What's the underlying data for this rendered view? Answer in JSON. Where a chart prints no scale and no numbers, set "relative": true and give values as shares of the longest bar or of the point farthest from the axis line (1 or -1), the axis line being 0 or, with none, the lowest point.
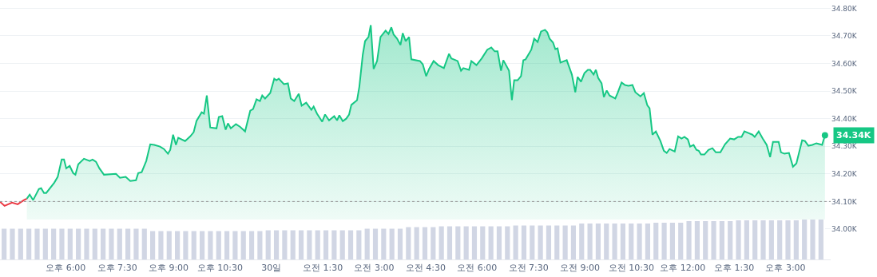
{
  "chart_data": [
    {
      "type": "area",
      "xlim": [
        "--10-29T16:05",
        "--10-30T16:19"
      ],
      "ylim": [
        33.89,
        34.83
      ],
      "xticks": [
        {
          "value": "--10-29T18:00",
          "label": "오후 6:00"
        },
        {
          "value": "--10-29T19:30",
          "label": "오후 7:30"
        },
        {
          "value": "--10-29T21:00",
          "label": "오후 9:00"
        },
        {
          "value": "--10-29T22:30",
          "label": "오후 10:30"
        },
        {
          "value": "--10-30T00:00",
          "label": "30일"
        },
        {
          "value": "--10-30T01:30",
          "label": "오전 1:30"
        },
        {
          "value": "--10-30T03:00",
          "label": "오전 3:00"
        },
        {
          "value": "--10-30T04:30",
          "label": "오전 4:30"
        },
        {
          "value": "--10-30T06:00",
          "label": "오전 6:00"
        },
        {
          "value": "--10-30T07:30",
          "label": "오전 7:30"
        },
        {
          "value": "--10-30T09:00",
          "label": "오전 9:00"
        },
        {
          "value": "--10-30T10:30",
          "label": "오전 10:30"
        },
        {
          "value": "--10-30T12:00",
          "label": "오후 12:00"
        },
        {
          "value": "--10-30T13:30",
          "label": "오후 1:30"
        },
        {
          "value": "--10-30T15:00",
          "label": "오후 3:00"
        }
      ],
      "yticks": [
        {
          "value": 34.0,
          "label": "34.00K"
        },
        {
          "value": 34.1,
          "label": "34.10K"
        },
        {
          "value": 34.2,
          "label": "34.20K"
        },
        {
          "value": 34.3,
          "label": "34.30K"
        },
        {
          "value": 34.4,
          "label": "34.40K"
        },
        {
          "value": 34.5,
          "label": "34.50K"
        },
        {
          "value": 34.6,
          "label": "34.60K"
        },
        {
          "value": 34.7,
          "label": "34.70K"
        },
        {
          "value": 34.8,
          "label": "34.80K"
        }
      ],
      "grid": "y",
      "ref_lines": [
        {
          "axis": "y",
          "value": 34.1,
          "color": "#999999",
          "line_style": "dotted"
        }
      ],
      "annotations": [
        "34.34K"
      ],
      "series": [
        {
          "type": "line",
          "color": "#ea3943",
          "x": [
            "--10-29T16:05",
            "--10-29T16:13",
            "--10-29T16:26",
            "--10-29T16:36",
            "--10-29T16:47",
            "--10-29T16:52"
          ],
          "values": [
            34.099,
            34.084,
            34.096,
            34.09,
            34.105,
            34.11
          ]
        },
        {
          "type": "area",
          "color": "#16c784",
          "x": [
            "--10-29T16:52",
            "--10-29T16:57",
            "--10-29T17:03",
            "--10-29T17:13",
            "--10-29T17:17",
            "--10-29T17:22",
            "--10-29T17:26",
            "--10-29T17:40",
            "--10-29T17:46",
            "--10-29T17:53",
            "--10-29T17:57",
            "--10-29T18:01",
            "--10-29T18:07",
            "--10-29T18:13",
            "--10-29T18:17",
            "--10-29T18:22",
            "--10-29T18:32",
            "--10-29T18:42",
            "--10-29T18:47",
            "--10-29T18:53",
            "--10-29T18:59",
            "--10-29T19:07",
            "--10-29T19:28",
            "--10-29T19:35",
            "--10-29T19:45",
            "--10-29T19:53",
            "--10-29T20:03",
            "--10-29T20:07",
            "--10-29T20:13",
            "--10-29T20:21",
            "--10-29T20:28",
            "--10-29T20:35",
            "--10-29T20:45",
            "--10-29T20:52",
            "--10-29T20:59",
            "--10-29T21:03",
            "--10-29T21:08",
            "--10-29T21:13",
            "--10-29T21:17",
            "--10-29T21:29",
            "--10-29T21:38",
            "--10-29T21:44",
            "--10-29T21:49",
            "--10-29T21:58",
            "--10-29T22:02",
            "--10-29T22:07",
            "--10-29T22:13",
            "--10-29T22:24",
            "--10-29T22:28",
            "--10-29T22:34",
            "--10-29T22:40",
            "--10-29T22:44",
            "--10-29T22:49",
            "--10-29T22:58",
            "--10-29T23:05",
            "--10-29T23:14",
            "--10-29T23:23",
            "--10-29T23:28",
            "--10-29T23:34",
            "--10-29T23:40",
            "--10-29T23:44",
            "--10-29T23:49",
            "--10-29T23:58",
            "--10-30T00:05",
            "--10-30T00:09",
            "--10-30T00:13",
            "--10-30T00:22",
            "--10-30T00:29",
            "--10-30T00:34",
            "--10-30T00:40",
            "--10-30T00:48",
            "--10-30T00:53",
            "--10-30T01:01",
            "--10-30T01:10",
            "--10-30T01:14",
            "--10-30T01:20",
            "--10-30T01:29",
            "--10-30T01:34",
            "--10-30T01:41",
            "--10-30T01:50",
            "--10-30T01:55",
            "--10-30T01:59",
            "--10-30T02:05",
            "--10-30T02:11",
            "--10-30T02:16",
            "--10-30T02:20",
            "--10-30T02:30",
            "--10-30T02:34",
            "--10-30T02:40",
            "--10-30T02:44",
            "--10-30T02:50",
            "--10-30T02:54",
            "--10-30T02:59",
            "--10-30T03:05",
            "--10-30T03:11",
            "--10-30T03:20",
            "--10-30T03:25",
            "--10-30T03:30",
            "--10-30T03:34",
            "--10-30T03:40",
            "--10-30T03:46",
            "--10-30T03:50",
            "--10-30T03:55",
            "--10-30T04:01",
            "--10-30T04:05",
            "--10-30T04:20",
            "--10-30T04:25",
            "--10-30T04:31",
            "--10-30T04:36",
            "--10-30T04:44",
            "--10-30T04:52",
            "--10-30T05:02",
            "--10-30T05:11",
            "--10-30T05:15",
            "--10-30T05:26",
            "--10-30T05:32",
            "--10-30T05:36",
            "--10-30T05:46",
            "--10-30T05:50",
            "--10-30T05:59",
            "--10-30T06:08",
            "--10-30T06:18",
            "--10-30T06:25",
            "--10-30T06:31",
            "--10-30T06:36",
            "--10-30T06:42",
            "--10-30T06:46",
            "--10-30T06:56",
            "--10-30T07:01",
            "--10-30T07:05",
            "--10-30T07:11",
            "--10-30T07:17",
            "--10-30T07:21",
            "--10-30T07:25",
            "--10-30T07:35",
            "--10-30T07:40",
            "--10-30T07:46",
            "--10-30T07:52",
            "--10-30T07:59",
            "--10-30T08:03",
            "--10-30T08:07",
            "--10-30T08:13",
            "--10-30T08:17",
            "--10-30T08:21",
            "--10-30T08:26",
            "--10-30T08:37",
            "--10-30T08:46",
            "--10-30T08:52",
            "--10-30T08:56",
            "--10-30T09:02",
            "--10-30T09:08",
            "--10-30T09:14",
            "--10-30T09:18",
            "--10-30T09:24",
            "--10-30T09:28",
            "--10-30T09:32",
            "--10-30T09:38",
            "--10-30T09:42",
            "--10-30T09:47",
            "--10-30T09:52",
            "--10-30T10:02",
            "--10-30T10:06",
            "--10-30T10:13",
            "--10-30T10:19",
            "--10-30T10:25",
            "--10-30T10:32",
            "--10-30T10:37",
            "--10-30T10:46",
            "--10-30T10:52",
            "--10-30T10:58",
            "--10-30T11:02",
            "--10-30T11:07",
            "--10-30T11:13",
            "--10-30T11:21",
            "--10-30T11:27",
            "--10-30T11:32",
            "--10-30T11:37",
            "--10-30T11:46",
            "--10-30T11:52",
            "--10-30T11:58",
            "--10-30T12:03",
            "--10-30T12:09",
            "--10-30T12:13",
            "--10-30T12:19",
            "--10-30T12:24",
            "--10-30T12:28",
            "--10-30T12:32",
            "--10-30T12:38",
            "--10-30T12:45",
            "--10-30T12:52",
            "--10-30T12:58",
            "--10-30T13:06",
            "--10-30T13:14",
            "--10-30T13:23",
            "--10-30T13:30",
            "--10-30T13:37",
            "--10-30T13:43",
            "--10-30T13:48",
            "--10-30T13:55",
            "--10-30T14:02",
            "--10-30T14:06",
            "--10-30T14:13",
            "--10-30T14:20",
            "--10-30T14:27",
            "--10-30T14:33",
            "--10-30T14:38",
            "--10-30T14:48",
            "--10-30T14:52",
            "--10-30T14:58",
            "--10-30T15:06",
            "--10-30T15:13",
            "--10-30T15:19",
            "--10-30T15:29",
            "--10-30T15:34",
            "--10-30T15:40",
            "--10-30T15:47",
            "--10-30T15:54",
            "--10-30T15:59",
            "--10-30T16:04",
            "--10-30T16:09"
          ],
          "values": [
            34.11,
            34.125,
            34.105,
            34.145,
            34.148,
            34.131,
            34.131,
            34.168,
            34.189,
            34.252,
            34.252,
            34.22,
            34.229,
            34.203,
            34.197,
            34.235,
            34.255,
            34.247,
            34.252,
            34.244,
            34.22,
            34.197,
            34.2,
            34.186,
            34.189,
            34.174,
            34.177,
            34.203,
            34.206,
            34.247,
            34.307,
            34.305,
            34.299,
            34.29,
            34.273,
            34.287,
            34.342,
            34.305,
            34.331,
            34.319,
            34.336,
            34.351,
            34.392,
            34.423,
            34.418,
            34.484,
            34.368,
            34.365,
            34.406,
            34.409,
            34.36,
            34.383,
            34.365,
            34.38,
            34.371,
            34.354,
            34.429,
            34.435,
            34.47,
            34.464,
            34.484,
            34.473,
            34.493,
            34.545,
            34.539,
            34.545,
            34.525,
            34.528,
            34.473,
            34.464,
            34.49,
            34.447,
            34.458,
            34.432,
            34.444,
            34.418,
            34.389,
            34.415,
            34.394,
            34.409,
            34.394,
            34.412,
            34.391,
            34.4,
            34.415,
            34.45,
            34.467,
            34.516,
            34.632,
            34.681,
            34.696,
            34.739,
            34.58,
            34.609,
            34.696,
            34.719,
            34.707,
            34.731,
            34.705,
            34.69,
            34.667,
            34.71,
            34.681,
            34.696,
            34.615,
            34.609,
            34.597,
            34.554,
            34.58,
            34.609,
            34.594,
            34.583,
            34.635,
            34.618,
            34.609,
            34.574,
            34.583,
            34.577,
            34.609,
            34.594,
            34.618,
            34.65,
            34.658,
            34.644,
            34.644,
            34.574,
            34.612,
            34.574,
            34.467,
            34.539,
            34.539,
            34.554,
            34.612,
            34.615,
            34.65,
            34.69,
            34.678,
            34.716,
            34.722,
            34.713,
            34.69,
            34.676,
            34.652,
            34.655,
            34.603,
            34.612,
            34.56,
            34.496,
            34.551,
            34.534,
            34.565,
            34.577,
            34.577,
            34.56,
            34.577,
            34.548,
            34.528,
            34.478,
            34.502,
            34.484,
            34.473,
            34.493,
            34.531,
            34.522,
            34.519,
            34.522,
            34.496,
            34.481,
            34.493,
            34.449,
            34.438,
            34.342,
            34.354,
            34.319,
            34.284,
            34.276,
            34.29,
            34.281,
            34.336,
            34.328,
            34.334,
            34.325,
            34.299,
            34.305,
            34.287,
            34.284,
            34.27,
            34.27,
            34.287,
            34.293,
            34.278,
            34.278,
            34.307,
            34.328,
            34.325,
            34.334,
            34.334,
            34.354,
            34.348,
            34.342,
            34.334,
            34.354,
            34.328,
            34.305,
            34.261,
            34.316,
            34.316,
            34.278,
            34.273,
            34.276,
            34.226,
            34.238,
            34.322,
            34.319,
            34.302,
            34.305,
            34.311,
            34.308,
            34.305,
            34.34
          ]
        }
      ]
    },
    {
      "type": "bar",
      "relative": true,
      "color": "#d1d6e4",
      "categories": [
        null,
        null,
        null,
        null,
        null,
        null,
        null,
        null,
        null,
        null,
        null,
        null,
        null,
        null,
        null,
        null,
        null,
        null,
        null,
        null,
        null,
        null,
        null,
        null,
        null,
        null,
        null,
        null,
        null,
        null,
        null,
        null,
        null,
        null,
        null,
        null,
        null,
        null,
        null,
        null,
        null,
        null,
        null,
        null,
        null,
        null,
        null,
        null,
        null,
        null,
        null,
        null,
        null,
        null,
        null,
        null,
        null,
        null,
        null,
        null,
        null,
        null,
        null,
        null,
        null,
        null,
        null,
        null,
        null,
        null,
        null,
        null,
        null,
        null,
        null,
        null,
        null,
        null,
        null,
        null,
        null,
        null,
        null,
        null,
        null,
        null,
        null,
        null,
        null,
        null,
        null,
        null,
        null,
        null,
        null,
        null,
        null,
        null,
        null,
        null
      ],
      "values": [
        0.77,
        0.77,
        0.77,
        0.77,
        0.77,
        0.77,
        0.77,
        0.77,
        0.77,
        0.77,
        0.77,
        0.77,
        0.77,
        0.77,
        0.77,
        0.77,
        0.77,
        0.77,
        0.71,
        0.71,
        0.71,
        0.71,
        0.71,
        0.71,
        0.71,
        0.71,
        0.71,
        0.71,
        0.71,
        0.71,
        0.71,
        0.71,
        0.73,
        0.73,
        0.73,
        0.73,
        0.73,
        0.73,
        0.73,
        0.73,
        0.73,
        0.73,
        0.73,
        0.73,
        0.77,
        0.77,
        0.77,
        0.77,
        0.77,
        0.81,
        0.81,
        0.81,
        0.81,
        0.83,
        0.83,
        0.83,
        0.83,
        0.83,
        0.83,
        0.83,
        0.83,
        0.83,
        0.85,
        0.85,
        0.85,
        0.85,
        0.85,
        0.85,
        0.85,
        0.85,
        0.9,
        0.9,
        0.9,
        0.9,
        0.9,
        0.9,
        0.9,
        0.9,
        0.9,
        0.92,
        0.92,
        0.92,
        0.92,
        0.96,
        0.96,
        0.96,
        0.96,
        0.96,
        0.96,
        0.98,
        0.98,
        0.98,
        0.98,
        0.98,
        0.98,
        0.98,
        0.98,
        1,
        1,
        1
      ]
    }
  ]
}
